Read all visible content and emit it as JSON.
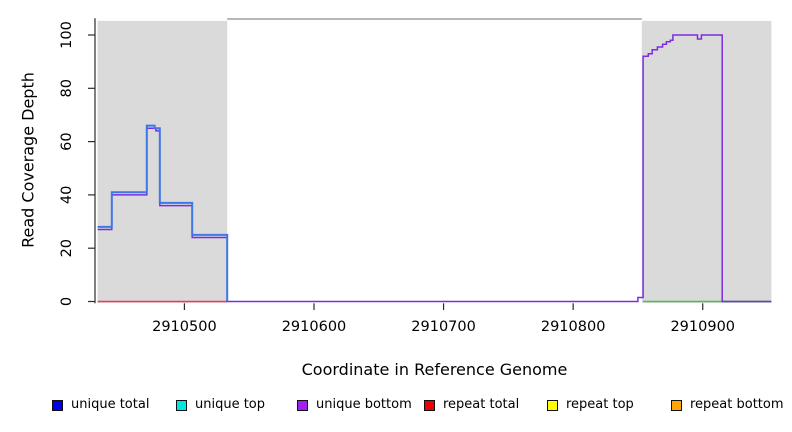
{
  "figure": {
    "background": "#FFFFFF",
    "text_color": "#000000"
  },
  "chart_data": {
    "type": "line",
    "title": "",
    "xlabel": "Coordinate in Reference Genome",
    "ylabel": "Read Coverage Depth",
    "xlim": [
      2910431,
      2910955
    ],
    "ylim": [
      0,
      106
    ],
    "xticks": [
      2910500,
      2910600,
      2910700,
      2910800,
      2910900
    ],
    "yticks": [
      0,
      20,
      40,
      60,
      80,
      100
    ],
    "grid": false,
    "axis_color": "#2B2B2B",
    "shaded_regions": [
      {
        "name": "left-gray-region",
        "x0": 2910433,
        "x1": 2910533,
        "color": "#DADADA"
      },
      {
        "name": "right-gray-region",
        "x0": 2910853,
        "x1": 2910953,
        "color": "#DADADA"
      }
    ],
    "top_border_segment": {
      "x0": 2910533,
      "x1": 2910853,
      "y": 106,
      "color": "#8C8C8C"
    },
    "series": [
      {
        "name": "repeat total baseline",
        "color": "#FF3355",
        "width": 1.4,
        "points": [
          [
            2910433,
            0
          ],
          [
            2910533,
            0
          ]
        ]
      },
      {
        "name": "green baseline",
        "color": "#4FBE4F",
        "width": 1.4,
        "points": [
          [
            2910854,
            0
          ],
          [
            2910953,
            0
          ]
        ]
      },
      {
        "name": "unique bottom",
        "color": "#7D2CE0",
        "width": 1.5,
        "points": [
          [
            2910433,
            27
          ],
          [
            2910444,
            27
          ],
          [
            2910444,
            40
          ],
          [
            2910471,
            40
          ],
          [
            2910471,
            65
          ],
          [
            2910478,
            65
          ],
          [
            2910478,
            64
          ],
          [
            2910481,
            64
          ],
          [
            2910481,
            36
          ],
          [
            2910506,
            36
          ],
          [
            2910506,
            24
          ],
          [
            2910533,
            24
          ],
          [
            2910533,
            0
          ],
          [
            2910850,
            0
          ],
          [
            2910850,
            1.5
          ],
          [
            2910854,
            1.5
          ],
          [
            2910854,
            92
          ],
          [
            2910858,
            92
          ],
          [
            2910858,
            93
          ],
          [
            2910861,
            93
          ],
          [
            2910861,
            94.5
          ],
          [
            2910865,
            94.5
          ],
          [
            2910865,
            95.5
          ],
          [
            2910869,
            95.5
          ],
          [
            2910869,
            96.5
          ],
          [
            2910872,
            96.5
          ],
          [
            2910872,
            97.5
          ],
          [
            2910875,
            97.5
          ],
          [
            2910875,
            98
          ],
          [
            2910877,
            98
          ],
          [
            2910877,
            100
          ],
          [
            2910896,
            100
          ],
          [
            2910896,
            98.5
          ],
          [
            2910899,
            98.5
          ],
          [
            2910899,
            100
          ],
          [
            2910915,
            100
          ],
          [
            2910915,
            0
          ],
          [
            2910953,
            0
          ]
        ]
      },
      {
        "name": "unique total",
        "color": "#3C78E7",
        "width": 2,
        "points": [
          [
            2910433,
            28
          ],
          [
            2910444,
            28
          ],
          [
            2910444,
            41
          ],
          [
            2910471,
            41
          ],
          [
            2910471,
            66
          ],
          [
            2910477,
            66
          ],
          [
            2910477,
            65
          ],
          [
            2910481,
            65
          ],
          [
            2910481,
            37
          ],
          [
            2910506,
            37
          ],
          [
            2910506,
            25
          ],
          [
            2910533,
            25
          ],
          [
            2910533,
            0
          ]
        ]
      }
    ],
    "legend": {
      "position": "bottom",
      "entries": [
        {
          "label": "unique total",
          "color": "#0000EE"
        },
        {
          "label": "unique top",
          "color": "#00E5E5"
        },
        {
          "label": "unique bottom",
          "color": "#A020F0"
        },
        {
          "label": "repeat total",
          "color": "#EE0000"
        },
        {
          "label": "repeat top",
          "color": "#FFFF00"
        },
        {
          "label": "repeat bottom",
          "color": "#FFA500"
        }
      ]
    }
  }
}
